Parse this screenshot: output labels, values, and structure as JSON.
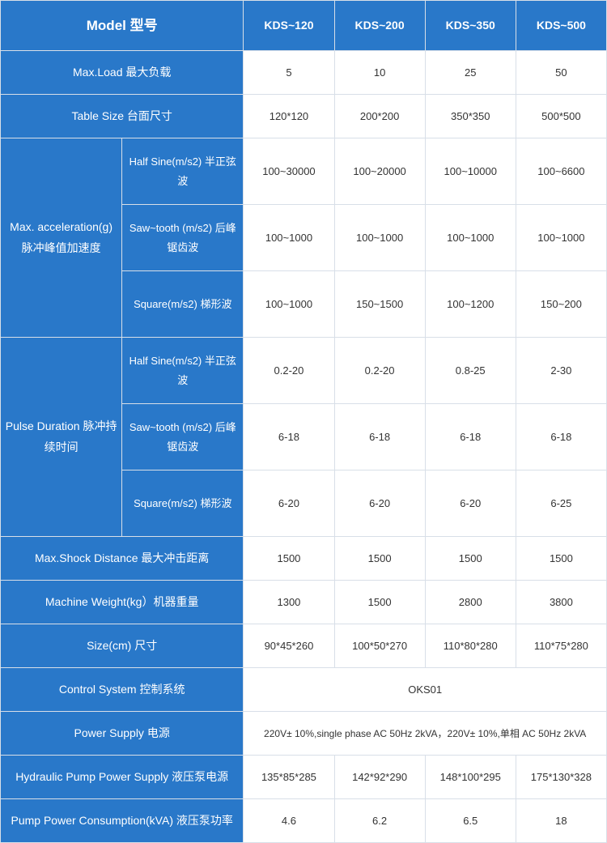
{
  "colors": {
    "header_bg": "#2978c9",
    "header_text": "#ffffff",
    "cell_text": "#333333",
    "border": "#d8dfe8",
    "page_bg": "#ffffff"
  },
  "typography": {
    "family": "Microsoft YaHei, Arial, sans-serif",
    "header_model_size": 17,
    "header_col_size": 14,
    "rowlabel_size": 14,
    "cell_size": 13
  },
  "header": {
    "model": "Model  型号",
    "cols": [
      "KDS~120",
      "KDS~200",
      "KDS~350",
      "KDS~500"
    ]
  },
  "rows": {
    "max_load": {
      "label": "Max.Load  最大负载",
      "vals": [
        "5",
        "10",
        "25",
        "50"
      ]
    },
    "table_size": {
      "label": "Table Size  台面尺寸",
      "vals": [
        "120*120",
        "200*200",
        "350*350",
        "500*500"
      ]
    },
    "max_accel": {
      "label": "Max. acceleration(g) 脉冲峰值加速度",
      "sub": {
        "half": {
          "label": "Half Sine(m/s2) 半正弦波",
          "vals": [
            "100~30000",
            "100~20000",
            "100~10000",
            "100~6600"
          ]
        },
        "saw": {
          "label": "Saw~tooth (m/s2) 后峰锯齿波",
          "vals": [
            "100~1000",
            "100~1000",
            "100~1000",
            "100~1000"
          ]
        },
        "square": {
          "label": "Square(m/s2) 梯形波",
          "vals": [
            "100~1000",
            "150~1500",
            "100~1200",
            "150~200"
          ]
        }
      }
    },
    "pulse_dur": {
      "label": "Pulse Duration 脉冲持续时间",
      "sub": {
        "half": {
          "label": "Half Sine(m/s2) 半正弦波",
          "vals": [
            "0.2-20",
            "0.2-20",
            "0.8-25",
            "2-30"
          ]
        },
        "saw": {
          "label": "Saw~tooth (m/s2) 后峰锯齿波",
          "vals": [
            "6-18",
            "6-18",
            "6-18",
            "6-18"
          ]
        },
        "square": {
          "label": "Square(m/s2) 梯形波",
          "vals": [
            "6-20",
            "6-20",
            "6-20",
            "6-25"
          ]
        }
      }
    },
    "shock_dist": {
      "label": "Max.Shock Distance 最大冲击距离",
      "vals": [
        "1500",
        "1500",
        "1500",
        "1500"
      ]
    },
    "machine_wt": {
      "label": "Machine Weight(kg）机器重量",
      "vals": [
        "1300",
        "1500",
        "2800",
        "3800"
      ]
    },
    "size": {
      "label": "Size(cm)  尺寸",
      "vals": [
        "90*45*260",
        "100*50*270",
        "110*80*280",
        "110*75*280"
      ]
    },
    "ctrl_sys": {
      "label": "Control System  控制系统",
      "val": "OKS01"
    },
    "power_supply": {
      "label": "Power Supply  电源",
      "val": "220V± 10%,single phase AC 50Hz 2kVA，220V± 10%,单相 AC 50Hz 2kVA"
    },
    "hyd_pump": {
      "label": "Hydraulic Pump Power Supply  液压泵电源",
      "vals": [
        "135*85*285",
        "142*92*290",
        "148*100*295",
        "175*130*328"
      ]
    },
    "pump_cons": {
      "label": "Pump Power Consumption(kVA) 液压泵功率",
      "vals": [
        "4.6",
        "6.2",
        "6.5",
        "18"
      ]
    }
  }
}
